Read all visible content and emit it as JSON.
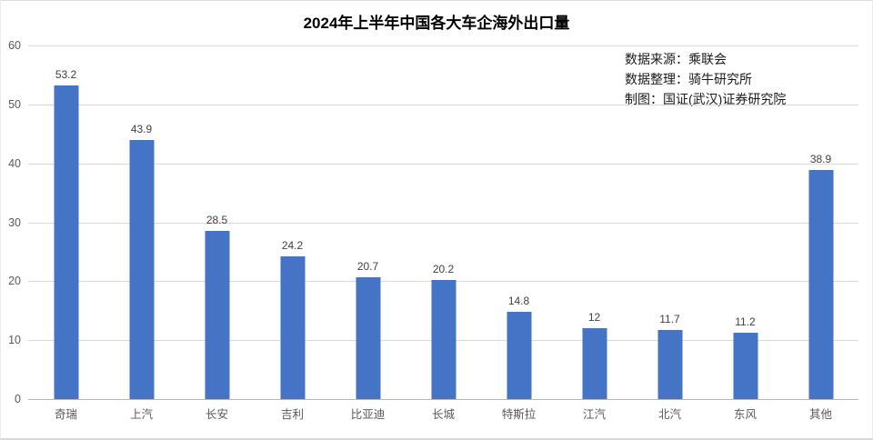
{
  "title": "2024年上半年中国各大车企海外出口量",
  "annotations": {
    "source": "数据来源：乘联会",
    "compiler": "数据整理：骑牛研究所",
    "chart_maker": "制图：国证(武汉)证券研究院"
  },
  "chart_data": {
    "type": "bar",
    "title": "2024年上半年中国各大车企海外出口量",
    "categories": [
      "奇瑞",
      "上汽",
      "长安",
      "吉利",
      "比亚迪",
      "长城",
      "特斯拉",
      "江汽",
      "北汽",
      "东风",
      "其他"
    ],
    "values": [
      53.2,
      43.9,
      28.5,
      24.2,
      20.7,
      20.2,
      14.8,
      12,
      11.7,
      11.2,
      38.9
    ],
    "value_labels": [
      "53.2",
      "43.9",
      "28.5",
      "24.2",
      "20.7",
      "20.2",
      "14.8",
      "12",
      "11.7",
      "11.2",
      "38.9"
    ],
    "xlabel": "",
    "ylabel": "",
    "ylim": [
      0,
      60
    ],
    "yticks": [
      0,
      10,
      20,
      30,
      40,
      50,
      60
    ],
    "grid": true,
    "legend": "none",
    "bar_color": "#4573c6",
    "gridline_color": "#d9d9d9",
    "axis_line_color": "#b7b7b7",
    "tick_label_color": "#595959",
    "value_label_color": "#404040"
  }
}
